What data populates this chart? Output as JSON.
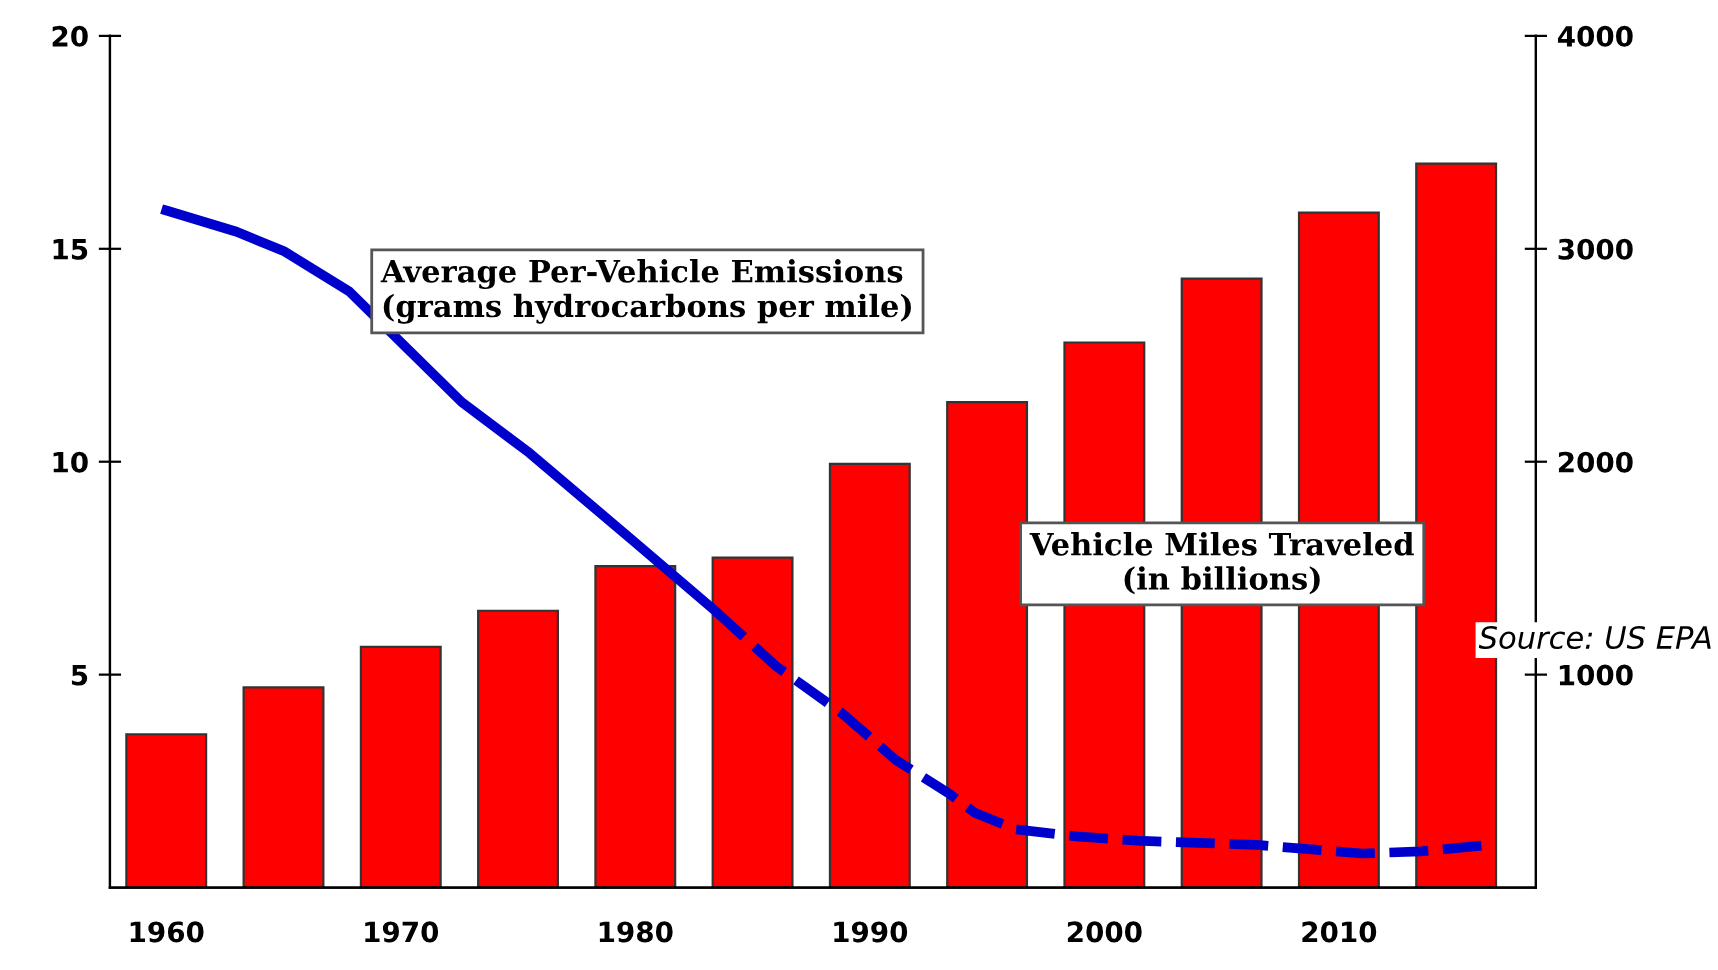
{
  "chart_data": {
    "type": "bar",
    "xlim": [
      1957.6,
      2018.4
    ],
    "xticks": [
      1960,
      1970,
      1980,
      1990,
      2000,
      2010
    ],
    "ylim": [
      0,
      20
    ],
    "yticks": [
      5,
      10,
      15,
      20
    ],
    "y2lim": [
      0,
      4000
    ],
    "y2ticks": [
      1000,
      2000,
      3000,
      4000
    ],
    "grid": false,
    "legend": false,
    "series": [
      {
        "axis": "y2",
        "color": "#ff0000",
        "x": [
          1960,
          1965,
          1970,
          1975,
          1980,
          1985,
          1990,
          1995,
          2000,
          2005,
          2010,
          2015
        ],
        "values": [
          720,
          940,
          1130,
          1300,
          1510,
          1550,
          1990,
          2280,
          2560,
          2860,
          3170,
          3400
        ]
      },
      {
        "type": "line",
        "axis": "y",
        "color": "#0000cc",
        "line_style": "solid",
        "marker": "none",
        "x": [
          1960,
          1963,
          1965,
          1967.8,
          1972.6,
          1975.5,
          1980,
          1983.4
        ],
        "values": [
          15.9,
          15.4,
          14.95,
          14.0,
          11.4,
          10.2,
          8.1,
          6.5
        ]
      },
      {
        "type": "line",
        "axis": "y",
        "color": "#0000cc",
        "line_style": "dashed",
        "marker": "none",
        "x": [
          1983.4,
          1986,
          1988.8,
          1991.1,
          1993.4,
          1994.5,
          1996.2,
          1998.8,
          2001.4,
          2006.5,
          2011,
          2013.5,
          2016.4
        ],
        "values": [
          6.5,
          5.2,
          4.1,
          3.0,
          2.2,
          1.75,
          1.37,
          1.2,
          1.1,
          1.0,
          0.8,
          0.85,
          1.0
        ]
      }
    ],
    "annotations": [
      "Average Per-Vehicle Emissions\n(grams hydrocarbons per mile)",
      "Vehicle Miles Traveled\n(in billions)",
      "Source: US EPA"
    ]
  }
}
